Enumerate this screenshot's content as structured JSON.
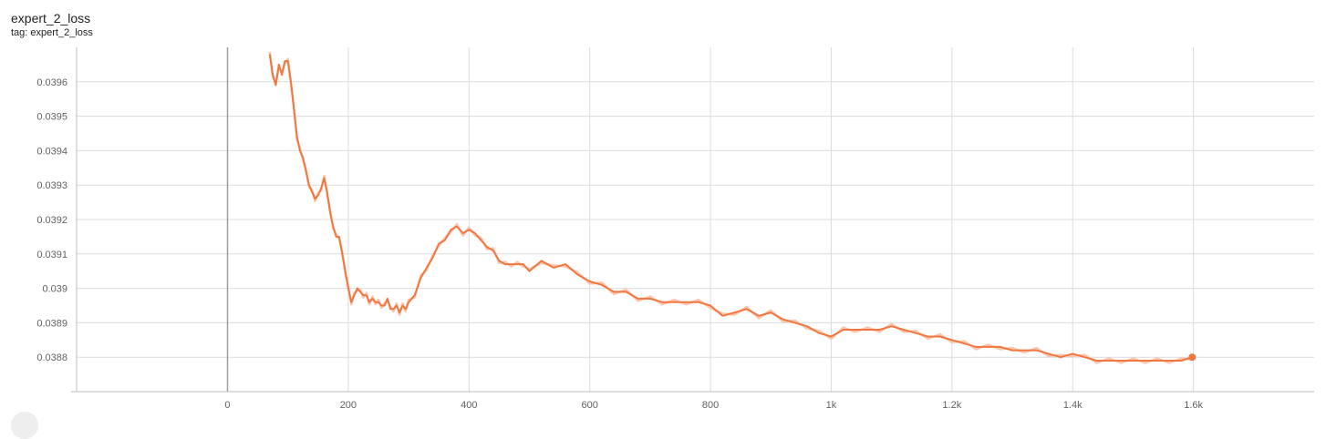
{
  "card": {
    "title": "expert_2_loss",
    "tag": "tag: expert_2_loss"
  },
  "colors": {
    "series": "#f2763f",
    "raw": "#f9c6ae",
    "grid": "#dcdcdc",
    "zero_line": "#9e9e9e"
  },
  "chart_data": {
    "type": "line",
    "title": "expert_2_loss",
    "xlabel": "",
    "ylabel": "",
    "xlim": [
      -250,
      1800
    ],
    "ylim": [
      0.0387,
      0.0397
    ],
    "grid": true,
    "x_ticks": [
      0,
      200,
      400,
      600,
      800,
      1000,
      1200,
      1400,
      1600
    ],
    "x_tick_labels": [
      "0",
      "200",
      "400",
      "600",
      "800",
      "1k",
      "1.2k",
      "1.4k",
      "1.6k"
    ],
    "y_ticks": [
      0.0388,
      0.0389,
      0.039,
      0.0391,
      0.0392,
      0.0393,
      0.0394,
      0.0395,
      0.0396
    ],
    "y_tick_labels": [
      "0.0388",
      "0.0389",
      "0.039",
      "0.0391",
      "0.0392",
      "0.0393",
      "0.0394",
      "0.0395",
      "0.0396"
    ],
    "series": [
      {
        "x": [
          70,
          75,
          80,
          85,
          90,
          95,
          100,
          105,
          110,
          115,
          120,
          125,
          130,
          135,
          140,
          145,
          150,
          155,
          160,
          165,
          170,
          175,
          180,
          185,
          190,
          195,
          200,
          205,
          210,
          215,
          220,
          225,
          230,
          235,
          240,
          245,
          250,
          255,
          260,
          265,
          270,
          275,
          280,
          285,
          290,
          295,
          300,
          310,
          320,
          330,
          340,
          350,
          360,
          370,
          380,
          390,
          400,
          410,
          420,
          430,
          440,
          450,
          460,
          470,
          480,
          490,
          500,
          520,
          540,
          560,
          580,
          600,
          620,
          640,
          660,
          680,
          700,
          720,
          740,
          760,
          780,
          800,
          820,
          840,
          860,
          880,
          900,
          920,
          940,
          960,
          980,
          1000,
          1020,
          1040,
          1060,
          1080,
          1100,
          1120,
          1140,
          1160,
          1180,
          1200,
          1220,
          1240,
          1260,
          1280,
          1300,
          1320,
          1340,
          1360,
          1380,
          1400,
          1420,
          1440,
          1460,
          1480,
          1500,
          1520,
          1540,
          1560,
          1580,
          1598
        ],
        "y": [
          0.03968,
          0.03962,
          0.03959,
          0.03965,
          0.03962,
          0.03966,
          0.03966,
          0.0396,
          0.03952,
          0.03944,
          0.0394,
          0.03938,
          0.03934,
          0.0393,
          0.03928,
          0.03926,
          0.03927,
          0.03929,
          0.03932,
          0.03928,
          0.03922,
          0.03918,
          0.03915,
          0.03915,
          0.0391,
          0.03905,
          0.039,
          0.03896,
          0.03898,
          0.039,
          0.03899,
          0.03898,
          0.03898,
          0.03896,
          0.03897,
          0.03896,
          0.03896,
          0.03895,
          0.03895,
          0.03897,
          0.03894,
          0.03894,
          0.03895,
          0.03893,
          0.03895,
          0.03894,
          0.03896,
          0.03898,
          0.03903,
          0.03906,
          0.03909,
          0.03913,
          0.03914,
          0.03917,
          0.03918,
          0.03916,
          0.03917,
          0.03916,
          0.03914,
          0.03912,
          0.03911,
          0.03908,
          0.03907,
          0.03907,
          0.03907,
          0.03907,
          0.03905,
          0.03908,
          0.03906,
          0.03907,
          0.03904,
          0.03902,
          0.03901,
          0.03899,
          0.03899,
          0.03897,
          0.03897,
          0.03896,
          0.03896,
          0.03896,
          0.03896,
          0.03895,
          0.03892,
          0.03893,
          0.03894,
          0.03892,
          0.03893,
          0.03891,
          0.0389,
          0.03889,
          0.03887,
          0.03886,
          0.03888,
          0.03888,
          0.03888,
          0.03888,
          0.03889,
          0.03888,
          0.03887,
          0.03886,
          0.03886,
          0.03885,
          0.03884,
          0.03883,
          0.03883,
          0.03883,
          0.03882,
          0.03882,
          0.03882,
          0.03881,
          0.0388,
          0.03881,
          0.0388,
          0.03879,
          0.03879,
          0.03879,
          0.03879,
          0.03879,
          0.03879,
          0.03879,
          0.03879,
          0.0388
        ]
      }
    ]
  }
}
